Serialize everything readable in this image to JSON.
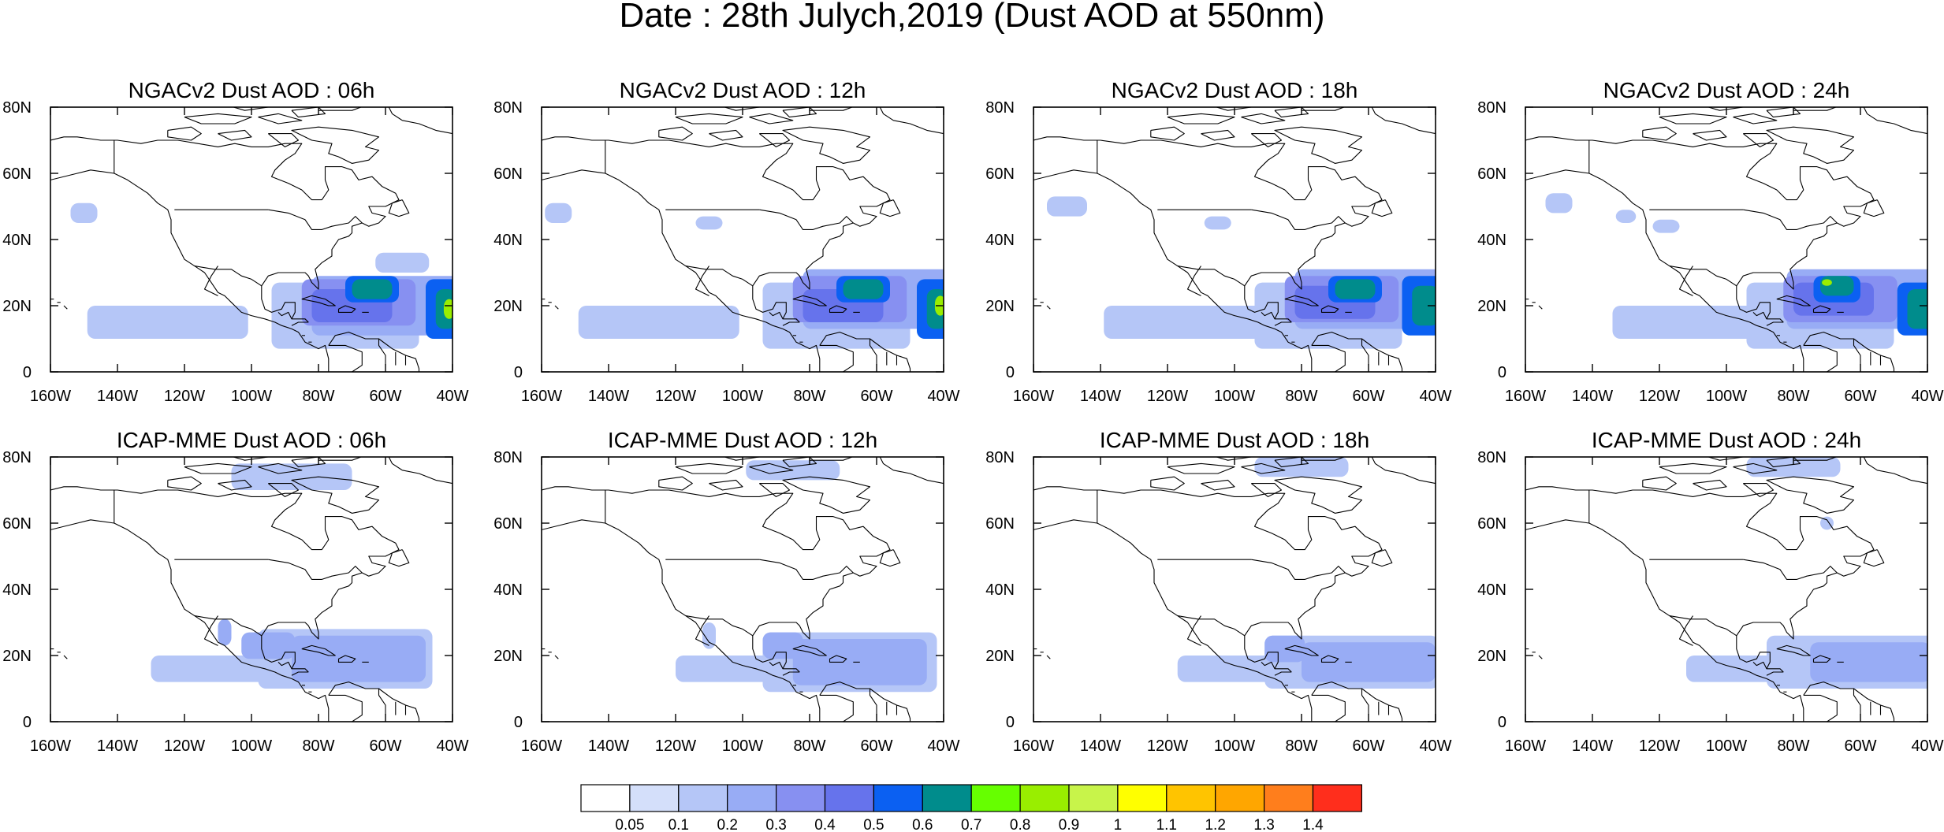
{
  "title": "Date : 28th Julych,2019 (Dust AOD at 550nm)",
  "chart_data": {
    "type": "heatmap",
    "xlabels": [
      "160W",
      "140W",
      "120W",
      "100W",
      "80W",
      "60W",
      "40W"
    ],
    "ylabels": [
      "0",
      "20N",
      "40N",
      "60N",
      "80N"
    ],
    "xlim": [
      -160,
      -40
    ],
    "ylim": [
      0,
      80
    ],
    "colorbar": {
      "colors": [
        "#ffffff",
        "#d4dffa",
        "#b5c6f7",
        "#98acf5",
        "#8790f1",
        "#6673ec",
        "#0b60f2",
        "#008c8c",
        "#66ff00",
        "#99ee00",
        "#c8f44a",
        "#ffff00",
        "#ffc400",
        "#ffa600",
        "#ff7e1c",
        "#ff2e1c"
      ],
      "labels": [
        "0.05",
        "0.1",
        "0.2",
        "0.3",
        "0.4",
        "0.5",
        "0.6",
        "0.7",
        "0.8",
        "0.9",
        "1",
        "1.1",
        "1.2",
        "1.3",
        "1.4"
      ]
    },
    "panels": [
      {
        "title": "NGACv2 Dust AOD : 06h",
        "blobs": [
          {
            "lon": -125,
            "lat": 15,
            "rx": 24,
            "ry": 5,
            "v": 0.1
          },
          {
            "lon": -72,
            "lat": 17,
            "rx": 22,
            "ry": 10,
            "v": 0.1
          },
          {
            "lon": -60,
            "lat": 20,
            "rx": 22,
            "ry": 9,
            "v": 0.2
          },
          {
            "lon": -68,
            "lat": 21,
            "rx": 17,
            "ry": 7,
            "v": 0.3
          },
          {
            "lon": -70,
            "lat": 20,
            "rx": 12,
            "ry": 5,
            "v": 0.4
          },
          {
            "lon": -64,
            "lat": 25,
            "rx": 8,
            "ry": 4,
            "v": 0.5
          },
          {
            "lon": -64,
            "lat": 25,
            "rx": 6,
            "ry": 3,
            "v": 0.6
          },
          {
            "lon": -43,
            "lat": 19,
            "rx": 5,
            "ry": 9,
            "v": 0.5
          },
          {
            "lon": -42,
            "lat": 19,
            "rx": 3,
            "ry": 6,
            "v": 0.6
          },
          {
            "lon": -41,
            "lat": 19,
            "rx": 1.6,
            "ry": 3,
            "v": 0.8
          },
          {
            "lon": -150,
            "lat": 48,
            "rx": 4,
            "ry": 3,
            "v": 0.1
          },
          {
            "lon": -55,
            "lat": 33,
            "rx": 8,
            "ry": 3,
            "v": 0.1
          }
        ]
      },
      {
        "title": "NGACv2 Dust AOD : 12h",
        "blobs": [
          {
            "lon": -125,
            "lat": 15,
            "rx": 24,
            "ry": 5,
            "v": 0.1
          },
          {
            "lon": -72,
            "lat": 17,
            "rx": 22,
            "ry": 10,
            "v": 0.1
          },
          {
            "lon": -60,
            "lat": 22,
            "rx": 22,
            "ry": 9,
            "v": 0.2
          },
          {
            "lon": -68,
            "lat": 22,
            "rx": 17,
            "ry": 7,
            "v": 0.3
          },
          {
            "lon": -70,
            "lat": 20,
            "rx": 12,
            "ry": 5,
            "v": 0.4
          },
          {
            "lon": -64,
            "lat": 25,
            "rx": 8,
            "ry": 4,
            "v": 0.5
          },
          {
            "lon": -64,
            "lat": 25,
            "rx": 6,
            "ry": 3,
            "v": 0.6
          },
          {
            "lon": -43,
            "lat": 19,
            "rx": 5,
            "ry": 9,
            "v": 0.5
          },
          {
            "lon": -42,
            "lat": 19,
            "rx": 3,
            "ry": 6,
            "v": 0.6
          },
          {
            "lon": -41,
            "lat": 20,
            "rx": 1.6,
            "ry": 3,
            "v": 0.8
          },
          {
            "lon": -155,
            "lat": 48,
            "rx": 4,
            "ry": 3,
            "v": 0.1
          },
          {
            "lon": -110,
            "lat": 45,
            "rx": 4,
            "ry": 2,
            "v": 0.1
          }
        ]
      },
      {
        "title": "NGACv2 Dust AOD : 18h",
        "blobs": [
          {
            "lon": -115,
            "lat": 15,
            "rx": 24,
            "ry": 5,
            "v": 0.1
          },
          {
            "lon": -72,
            "lat": 17,
            "rx": 22,
            "ry": 10,
            "v": 0.1
          },
          {
            "lon": -60,
            "lat": 22,
            "rx": 22,
            "ry": 9,
            "v": 0.2
          },
          {
            "lon": -68,
            "lat": 22,
            "rx": 17,
            "ry": 7,
            "v": 0.3
          },
          {
            "lon": -70,
            "lat": 21,
            "rx": 12,
            "ry": 5,
            "v": 0.4
          },
          {
            "lon": -64,
            "lat": 25,
            "rx": 8,
            "ry": 4,
            "v": 0.5
          },
          {
            "lon": -64,
            "lat": 25,
            "rx": 6,
            "ry": 3,
            "v": 0.6
          },
          {
            "lon": -44,
            "lat": 20,
            "rx": 6,
            "ry": 9,
            "v": 0.5
          },
          {
            "lon": -43,
            "lat": 20,
            "rx": 4,
            "ry": 6,
            "v": 0.6
          },
          {
            "lon": -150,
            "lat": 50,
            "rx": 6,
            "ry": 3,
            "v": 0.1
          },
          {
            "lon": -105,
            "lat": 45,
            "rx": 4,
            "ry": 2,
            "v": 0.1
          }
        ]
      },
      {
        "title": "NGACv2 Dust AOD : 24h",
        "blobs": [
          {
            "lon": -110,
            "lat": 15,
            "rx": 24,
            "ry": 5,
            "v": 0.1
          },
          {
            "lon": -72,
            "lat": 17,
            "rx": 22,
            "ry": 10,
            "v": 0.1
          },
          {
            "lon": -60,
            "lat": 22,
            "rx": 22,
            "ry": 9,
            "v": 0.2
          },
          {
            "lon": -66,
            "lat": 22,
            "rx": 17,
            "ry": 7,
            "v": 0.3
          },
          {
            "lon": -68,
            "lat": 22,
            "rx": 12,
            "ry": 5,
            "v": 0.4
          },
          {
            "lon": -67,
            "lat": 25,
            "rx": 7,
            "ry": 4,
            "v": 0.5
          },
          {
            "lon": -67,
            "lat": 26,
            "rx": 5,
            "ry": 3,
            "v": 0.6
          },
          {
            "lon": -70,
            "lat": 27,
            "rx": 1.5,
            "ry": 1,
            "v": 0.8
          },
          {
            "lon": -43,
            "lat": 19,
            "rx": 6,
            "ry": 8,
            "v": 0.5
          },
          {
            "lon": -42,
            "lat": 19,
            "rx": 4,
            "ry": 6,
            "v": 0.6
          },
          {
            "lon": -150,
            "lat": 51,
            "rx": 4,
            "ry": 3,
            "v": 0.1
          },
          {
            "lon": -130,
            "lat": 47,
            "rx": 3,
            "ry": 2,
            "v": 0.1
          },
          {
            "lon": -118,
            "lat": 44,
            "rx": 4,
            "ry": 2,
            "v": 0.1
          }
        ]
      },
      {
        "title": "ICAP-MME Dust AOD : 06h",
        "blobs": [
          {
            "lon": -110,
            "lat": 16,
            "rx": 20,
            "ry": 4,
            "v": 0.1
          },
          {
            "lon": -72,
            "lat": 19,
            "rx": 26,
            "ry": 9,
            "v": 0.1
          },
          {
            "lon": -68,
            "lat": 19,
            "rx": 20,
            "ry": 7,
            "v": 0.2
          },
          {
            "lon": -95,
            "lat": 23,
            "rx": 8,
            "ry": 4,
            "v": 0.2
          },
          {
            "lon": -88,
            "lat": 74,
            "rx": 18,
            "ry": 4,
            "v": 0.1
          },
          {
            "lon": -108,
            "lat": 27,
            "rx": 2,
            "ry": 4,
            "v": 0.2
          }
        ]
      },
      {
        "title": "ICAP-MME Dust AOD : 12h",
        "blobs": [
          {
            "lon": -100,
            "lat": 16,
            "rx": 20,
            "ry": 4,
            "v": 0.1
          },
          {
            "lon": -68,
            "lat": 18,
            "rx": 26,
            "ry": 9,
            "v": 0.1
          },
          {
            "lon": -65,
            "lat": 18,
            "rx": 20,
            "ry": 7,
            "v": 0.2
          },
          {
            "lon": -88,
            "lat": 23,
            "rx": 6,
            "ry": 4,
            "v": 0.2
          },
          {
            "lon": -85,
            "lat": 76,
            "rx": 14,
            "ry": 3,
            "v": 0.1
          },
          {
            "lon": -110,
            "lat": 26,
            "rx": 2,
            "ry": 4,
            "v": 0.1
          }
        ]
      },
      {
        "title": "ICAP-MME Dust AOD : 18h",
        "blobs": [
          {
            "lon": -95,
            "lat": 16,
            "rx": 22,
            "ry": 4,
            "v": 0.1
          },
          {
            "lon": -65,
            "lat": 18,
            "rx": 26,
            "ry": 8,
            "v": 0.1
          },
          {
            "lon": -60,
            "lat": 18,
            "rx": 20,
            "ry": 6,
            "v": 0.2
          },
          {
            "lon": -85,
            "lat": 22,
            "rx": 6,
            "ry": 4,
            "v": 0.2
          },
          {
            "lon": -80,
            "lat": 77,
            "rx": 14,
            "ry": 3,
            "v": 0.1
          }
        ]
      },
      {
        "title": "ICAP-MME Dust AOD : 24h",
        "blobs": [
          {
            "lon": -90,
            "lat": 16,
            "rx": 22,
            "ry": 4,
            "v": 0.1
          },
          {
            "lon": -62,
            "lat": 18,
            "rx": 26,
            "ry": 8,
            "v": 0.1
          },
          {
            "lon": -57,
            "lat": 18,
            "rx": 18,
            "ry": 6,
            "v": 0.2
          },
          {
            "lon": -80,
            "lat": 77,
            "rx": 14,
            "ry": 3,
            "v": 0.1
          },
          {
            "lon": -70,
            "lat": 60,
            "rx": 2,
            "ry": 2,
            "v": 0.1
          }
        ]
      }
    ]
  }
}
